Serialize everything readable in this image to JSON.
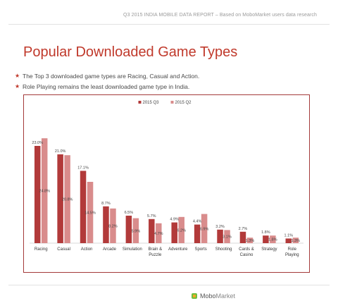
{
  "header": {
    "report_text": "Q3 2015 INDIA  MOBILE DATA REPORT – Based on MoboMarket users data research"
  },
  "title": "Popular Downloaded Game Types",
  "bullets": [
    "The Top 3 downloaded game types are Racing, Casual and Action.",
    "Role Playing remains the least downloaded game type in India."
  ],
  "footer": {
    "brand_part1": "Mobo",
    "brand_part2": "Market"
  },
  "colors": {
    "accent": "#c0392b",
    "q3": "#b23a3a",
    "q2": "#d98c8c"
  },
  "chart_data": {
    "type": "bar",
    "legend_position": "top",
    "categories": [
      [
        "Racing"
      ],
      [
        "Casual"
      ],
      [
        "Action"
      ],
      [
        "Arcade"
      ],
      [
        "Simulation"
      ],
      [
        "Brain &",
        "Puzzle"
      ],
      [
        "Adventure"
      ],
      [
        "Sports"
      ],
      [
        "Shooting"
      ],
      [
        "Cards &",
        "Casino"
      ],
      [
        "Strategy"
      ],
      [
        "Role",
        "Playing"
      ]
    ],
    "series": [
      {
        "name": "2015 Q3",
        "values": [
          23.0,
          21.0,
          17.1,
          8.7,
          6.5,
          5.7,
          4.9,
          4.4,
          3.2,
          2.7,
          1.8,
          1.1
        ],
        "labels": [
          "23.0%",
          "21.0%",
          "17.1%",
          "8.7%",
          "6.5%",
          "5.7%",
          "4.9%",
          "4.4%",
          "3.2%",
          "2.7%",
          "1.8%",
          "1.1%"
        ]
      },
      {
        "name": "2015 Q2",
        "values": [
          24.8,
          20.8,
          14.5,
          8.2,
          5.9,
          4.7,
          6.2,
          6.9,
          3.1,
          1.3,
          1.8,
          1.3
        ],
        "labels": [
          "24.8%",
          "20.8%",
          "14.5%",
          "8.2%",
          "5.9%",
          "4.7%",
          "6.2%",
          "6.9%",
          "3.1%",
          "1.3%",
          "1.8%",
          "1.3%"
        ]
      }
    ],
    "ylim": [
      0,
      26
    ],
    "grid": false
  }
}
